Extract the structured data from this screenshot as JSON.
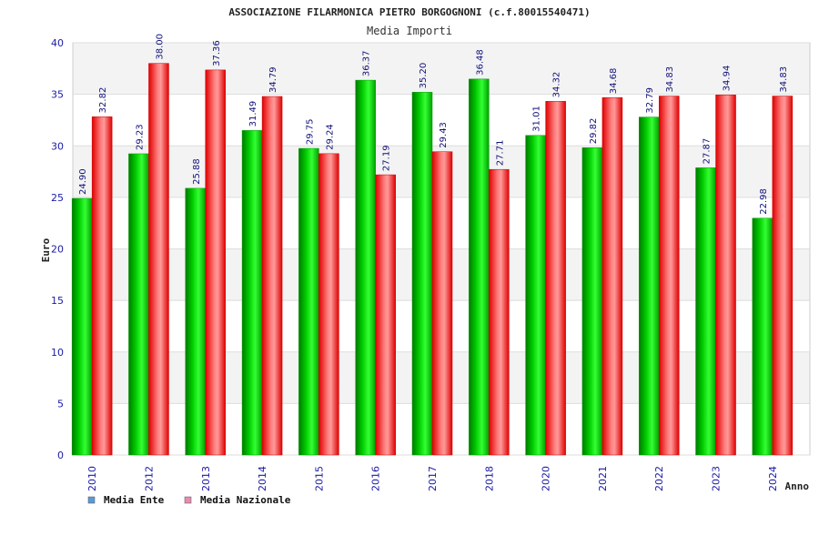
{
  "chart_data": {
    "type": "bar",
    "title": "ASSOCIAZIONE FILARMONICA PIETRO BORGOGNONI (c.f.80015540471)",
    "subtitle": "Media Importi",
    "xlabel": "Anno",
    "ylabel": "Euro",
    "ylim": [
      0,
      40
    ],
    "yticks": [
      0,
      5,
      10,
      15,
      20,
      25,
      30,
      35,
      40
    ],
    "grid": true,
    "legend_position": "bottom-left",
    "categories": [
      "2010",
      "2012",
      "2013",
      "2014",
      "2015",
      "2016",
      "2017",
      "2018",
      "2020",
      "2021",
      "2022",
      "2023",
      "2024"
    ],
    "series": [
      {
        "name": "Media Ente",
        "color": "#00c000",
        "legend_color": "#5b9bd5",
        "values": [
          24.9,
          29.23,
          25.88,
          31.49,
          29.75,
          36.37,
          35.2,
          36.48,
          31.01,
          29.82,
          32.79,
          27.87,
          22.98
        ]
      },
      {
        "name": "Media Nazionale",
        "color": "#e00000",
        "legend_color": "#e88bb0",
        "values": [
          32.82,
          38.0,
          37.36,
          34.79,
          29.24,
          27.19,
          29.43,
          27.71,
          34.32,
          34.68,
          34.83,
          34.94,
          34.83
        ]
      }
    ]
  }
}
